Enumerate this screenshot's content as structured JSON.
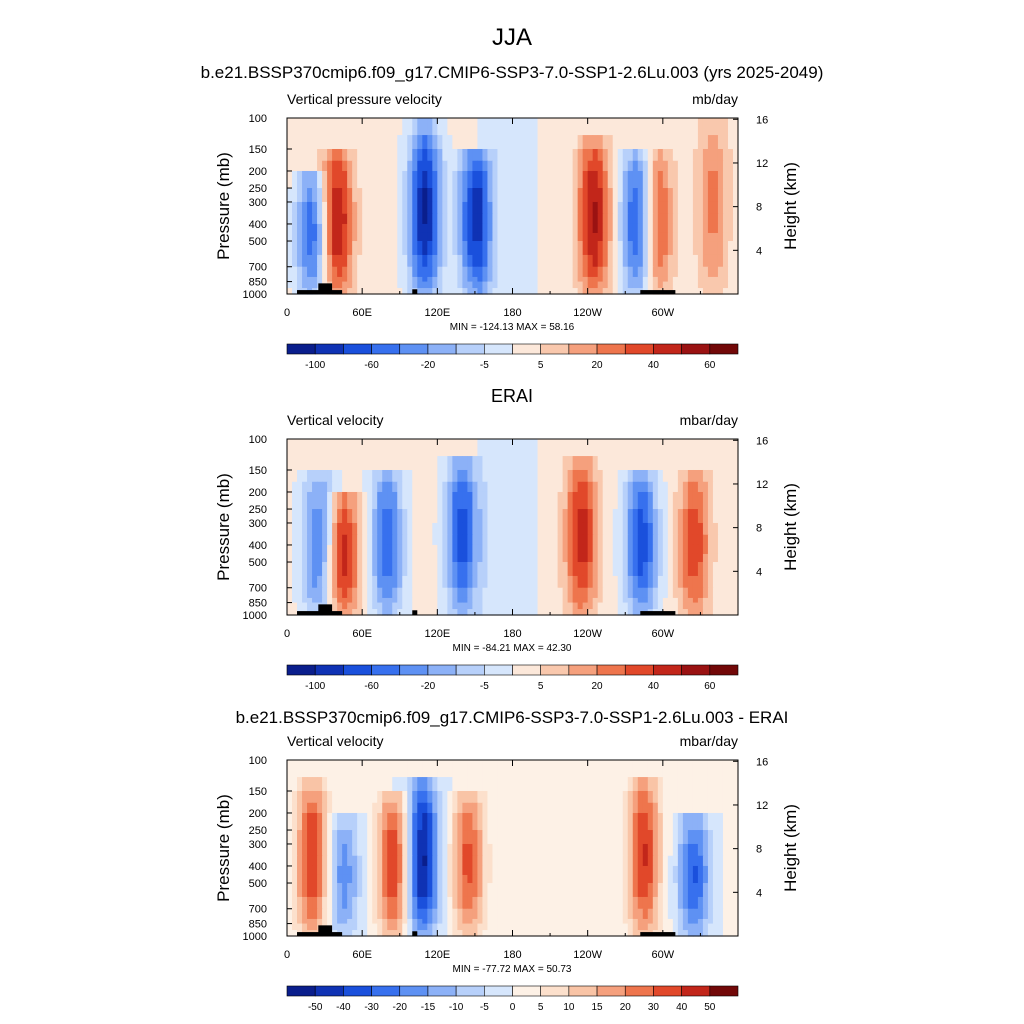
{
  "figure": {
    "main_title": "JJA",
    "panels": [
      {
        "title": "b.e21.BSSP370cmip6.f09_g17.CMIP6-SSP3-7.0-SSP1-2.6Lu.003 (yrs 2025-2049)",
        "left_label": "Vertical pressure velocity",
        "right_label": "mb/day",
        "stats": "MIN = -124.13  MAX =  58.16",
        "colorbar_labels": [
          "-100",
          "-60",
          "-20",
          "-5",
          "5",
          "20",
          "40",
          "60"
        ]
      },
      {
        "title": "ERAI",
        "left_label": "Vertical velocity",
        "right_label": "mbar/day",
        "stats": "MIN = -84.21  MAX =  42.30",
        "colorbar_labels": [
          "-100",
          "-60",
          "-20",
          "-5",
          "5",
          "20",
          "40",
          "60"
        ]
      },
      {
        "title": "b.e21.BSSP370cmip6.f09_g17.CMIP6-SSP3-7.0-SSP1-2.6Lu.003 - ERAI",
        "left_label": "Vertical velocity",
        "right_label": "mbar/day",
        "stats": "MIN = -77.72  MAX =  50.73",
        "colorbar_labels": [
          "-50",
          "-40",
          "-30",
          "-20",
          "-15",
          "-10",
          "-5",
          "0",
          "5",
          "10",
          "15",
          "20",
          "30",
          "40",
          "50"
        ]
      }
    ]
  },
  "chart_data": [
    {
      "type": "heatmap",
      "title": "b.e21.BSSP370cmip6.f09_g17.CMIP6-SSP3-7.0-SSP1-2.6Lu.003 (yrs 2025-2049)",
      "variable": "Vertical pressure velocity",
      "units": "mb/day",
      "xlabel": "",
      "ylabel": "Pressure (mb)",
      "ylabel_right": "Height (km)",
      "x_ticks": [
        "0",
        "60E",
        "120E",
        "180",
        "120W",
        "60W"
      ],
      "y_ticks": [
        "100",
        "150",
        "200",
        "250",
        "300",
        "400",
        "500",
        "700",
        "850",
        "1000"
      ],
      "y_right_ticks": [
        "16",
        "12",
        "8",
        "4"
      ],
      "min": -124.13,
      "max": 58.16,
      "colorbar_levels": [
        "-100",
        "-60",
        "-20",
        "-5",
        "5",
        "20",
        "40",
        "60"
      ],
      "features": [
        {
          "lon": 20,
          "p_top": 200,
          "sign": "negative",
          "strength": 0.7
        },
        {
          "lon": 40,
          "p_top": 150,
          "sign": "positive",
          "strength": 0.8
        },
        {
          "lon": 110,
          "p_top": 110,
          "sign": "negative",
          "strength": 1.0
        },
        {
          "lon": 150,
          "p_top": 140,
          "sign": "negative",
          "strength": 0.9
        },
        {
          "lon": 245,
          "p_top": 130,
          "sign": "positive",
          "strength": 0.8
        },
        {
          "lon": 280,
          "p_top": 150,
          "sign": "negative",
          "strength": 0.8
        },
        {
          "lon": 295,
          "p_top": 150,
          "sign": "positive",
          "strength": 0.6
        },
        {
          "lon": 340,
          "p_top": 100,
          "sign": "positive",
          "strength": 0.4
        }
      ]
    },
    {
      "type": "heatmap",
      "title": "ERAI",
      "variable": "Vertical velocity",
      "units": "mbar/day",
      "xlabel": "",
      "ylabel": "Pressure (mb)",
      "ylabel_right": "Height (km)",
      "x_ticks": [
        "0",
        "60E",
        "120E",
        "180",
        "120W",
        "60W"
      ],
      "y_ticks": [
        "100",
        "150",
        "200",
        "250",
        "300",
        "400",
        "500",
        "700",
        "850",
        "1000"
      ],
      "y_right_ticks": [
        "16",
        "12",
        "8",
        "4"
      ],
      "min": -84.21,
      "max": 42.3,
      "colorbar_levels": [
        "-100",
        "-60",
        "-20",
        "-5",
        "5",
        "20",
        "40",
        "60"
      ],
      "features": [
        {
          "lon": 25,
          "p_top": 150,
          "sign": "negative",
          "strength": 0.6
        },
        {
          "lon": 45,
          "p_top": 200,
          "sign": "positive",
          "strength": 0.7
        },
        {
          "lon": 80,
          "p_top": 150,
          "sign": "negative",
          "strength": 0.7
        },
        {
          "lon": 140,
          "p_top": 120,
          "sign": "negative",
          "strength": 0.8
        },
        {
          "lon": 235,
          "p_top": 130,
          "sign": "positive",
          "strength": 0.7
        },
        {
          "lon": 283,
          "p_top": 150,
          "sign": "negative",
          "strength": 0.8
        },
        {
          "lon": 325,
          "p_top": 150,
          "sign": "positive",
          "strength": 0.6
        }
      ]
    },
    {
      "type": "heatmap",
      "title": "b.e21.BSSP370cmip6.f09_g17.CMIP6-SSP3-7.0-SSP1-2.6Lu.003 - ERAI",
      "variable": "Vertical velocity",
      "units": "mbar/day",
      "xlabel": "",
      "ylabel": "Pressure (mb)",
      "ylabel_right": "Height (km)",
      "x_ticks": [
        "0",
        "60E",
        "120E",
        "180",
        "120W",
        "60W"
      ],
      "y_ticks": [
        "100",
        "150",
        "200",
        "250",
        "300",
        "400",
        "500",
        "700",
        "850",
        "1000"
      ],
      "y_right_ticks": [
        "16",
        "12",
        "8",
        "4"
      ],
      "min": -77.72,
      "max": 50.73,
      "colorbar_levels": [
        "-50",
        "-40",
        "-30",
        "-20",
        "-15",
        "-10",
        "-5",
        "0",
        "5",
        "10",
        "15",
        "20",
        "30",
        "40",
        "50"
      ],
      "features": [
        {
          "lon": 20,
          "p_top": 130,
          "sign": "positive",
          "strength": 0.8
        },
        {
          "lon": 45,
          "p_top": 200,
          "sign": "negative",
          "strength": 0.5
        },
        {
          "lon": 85,
          "p_top": 150,
          "sign": "positive",
          "strength": 0.8
        },
        {
          "lon": 108,
          "p_top": 130,
          "sign": "negative",
          "strength": 1.0
        },
        {
          "lon": 145,
          "p_top": 150,
          "sign": "positive",
          "strength": 0.7
        },
        {
          "lon": 285,
          "p_top": 120,
          "sign": "positive",
          "strength": 0.8
        },
        {
          "lon": 325,
          "p_top": 200,
          "sign": "negative",
          "strength": 0.7
        }
      ]
    }
  ]
}
